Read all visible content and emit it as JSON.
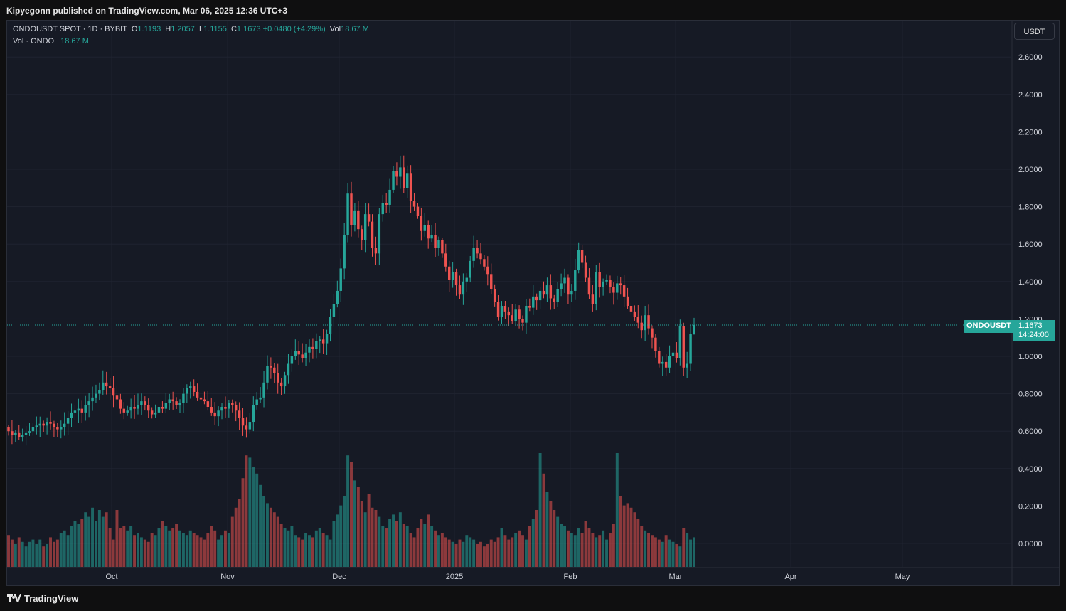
{
  "header": {
    "published_text": "Kipyegonn published on TradingView.com, Mar 06, 2025 12:36 UTC+3"
  },
  "legend": {
    "symbol_line": "ONDOUSDT SPOT · 1D · BYBIT",
    "o_label": "O",
    "o_value": "1.1193",
    "h_label": "H",
    "h_value": "1.2057",
    "l_label": "L",
    "l_value": "1.1155",
    "c_label": "C",
    "c_value": "1.1673",
    "change": "+0.0480 (+4.29%)",
    "vol_label": "Vol",
    "vol_value": "18.67 M",
    "vol_line_label": "Vol · ONDO",
    "vol_line_value": "18.67 M"
  },
  "currency_button": "USDT",
  "price_tag": {
    "symbol": "ONDOUSDT",
    "price": "1.1673",
    "countdown": "14:24:00"
  },
  "footer": {
    "logo_text": "TradingView",
    "logo_icon": "tradingview-logo-icon"
  },
  "colors": {
    "up": "#26a69a",
    "down": "#ef5350",
    "background": "#161a25",
    "grid": "#1f2330"
  },
  "chart_data": {
    "type": "candlestick",
    "title": "ONDOUSDT SPOT · 1D · BYBIT",
    "y_axis": {
      "ticks": [
        "2.6000",
        "2.4000",
        "2.2000",
        "2.0000",
        "1.8000",
        "1.6000",
        "1.4000",
        "1.2000",
        "1.0000",
        "0.8000",
        "0.6000",
        "0.4000",
        "0.2000",
        "0.0000"
      ],
      "ylim": [
        -0.13,
        2.7
      ]
    },
    "x_axis": {
      "ticks": [
        "Oct",
        "Nov",
        "Dec",
        "2025",
        "Feb",
        "Mar",
        "Apr",
        "May"
      ]
    },
    "last_price": 1.1673,
    "grid": true,
    "series": [
      {
        "name": "price",
        "description": "daily close, approximated",
        "start": "2024-09-03",
        "close": [
          0.6,
          0.58,
          0.59,
          0.57,
          0.58,
          0.59,
          0.6,
          0.62,
          0.63,
          0.64,
          0.63,
          0.65,
          0.64,
          0.62,
          0.61,
          0.62,
          0.64,
          0.67,
          0.7,
          0.71,
          0.72,
          0.7,
          0.74,
          0.76,
          0.78,
          0.8,
          0.82,
          0.86,
          0.84,
          0.83,
          0.79,
          0.77,
          0.72,
          0.7,
          0.71,
          0.73,
          0.72,
          0.74,
          0.76,
          0.74,
          0.71,
          0.69,
          0.7,
          0.73,
          0.72,
          0.75,
          0.77,
          0.76,
          0.74,
          0.75,
          0.8,
          0.83,
          0.84,
          0.81,
          0.78,
          0.77,
          0.76,
          0.73,
          0.7,
          0.68,
          0.71,
          0.73,
          0.72,
          0.75,
          0.74,
          0.71,
          0.67,
          0.63,
          0.61,
          0.65,
          0.74,
          0.77,
          0.78,
          0.86,
          0.95,
          0.94,
          0.91,
          0.86,
          0.84,
          0.9,
          0.96,
          1.0,
          1.03,
          1.01,
          0.99,
          1.02,
          1.05,
          1.04,
          1.08,
          1.09,
          1.07,
          1.12,
          1.21,
          1.28,
          1.35,
          1.47,
          1.65,
          1.87,
          1.7,
          1.78,
          1.68,
          1.62,
          1.76,
          1.72,
          1.58,
          1.55,
          1.76,
          1.82,
          1.81,
          1.89,
          1.99,
          1.96,
          2.01,
          1.9,
          1.98,
          1.83,
          1.8,
          1.75,
          1.67,
          1.7,
          1.63,
          1.65,
          1.58,
          1.62,
          1.55,
          1.48,
          1.41,
          1.45,
          1.38,
          1.33,
          1.4,
          1.42,
          1.51,
          1.58,
          1.55,
          1.52,
          1.48,
          1.44,
          1.36,
          1.29,
          1.21,
          1.27,
          1.24,
          1.22,
          1.19,
          1.25,
          1.2,
          1.18,
          1.27,
          1.26,
          1.32,
          1.3,
          1.35,
          1.33,
          1.38,
          1.31,
          1.29,
          1.36,
          1.39,
          1.42,
          1.33,
          1.35,
          1.46,
          1.57,
          1.5,
          1.42,
          1.33,
          1.28,
          1.45,
          1.37,
          1.4,
          1.41,
          1.37,
          1.34,
          1.39,
          1.38,
          1.32,
          1.27,
          1.24,
          1.21,
          1.18,
          1.14,
          1.22,
          1.15,
          1.1,
          1.03,
          0.96,
          0.97,
          0.94,
          1.0,
          1.02,
          0.99,
          1.16,
          0.94,
          0.96,
          1.12,
          1.1673
        ]
      },
      {
        "name": "volume",
        "description": "daily volume, approximated",
        "volume": [
          14,
          12,
          10,
          13,
          11,
          9,
          11,
          12,
          10,
          12,
          9,
          10,
          13,
          11,
          12,
          15,
          16,
          14,
          18,
          20,
          19,
          21,
          24,
          22,
          26,
          20,
          25,
          22,
          24,
          17,
          12,
          25,
          17,
          18,
          16,
          18,
          14,
          15,
          13,
          12,
          11,
          15,
          14,
          17,
          20,
          18,
          16,
          17,
          19,
          16,
          15,
          14,
          16,
          15,
          14,
          13,
          12,
          15,
          18,
          16,
          12,
          14,
          16,
          15,
          22,
          26,
          30,
          39,
          49,
          48,
          44,
          41,
          36,
          31,
          28,
          26,
          24,
          22,
          19,
          17,
          16,
          18,
          14,
          13,
          12,
          15,
          14,
          13,
          16,
          17,
          15,
          14,
          12,
          20,
          23,
          27,
          31,
          49,
          46,
          38,
          35,
          29,
          24,
          32,
          26,
          25,
          22,
          18,
          17,
          21,
          23,
          20,
          24,
          19,
          18,
          15,
          13,
          17,
          21,
          19,
          23,
          18,
          16,
          14,
          15,
          13,
          12,
          11,
          10,
          12,
          11,
          14,
          13,
          12,
          10,
          11,
          9,
          10,
          12,
          11,
          13,
          17,
          14,
          12,
          13,
          15,
          16,
          14,
          12,
          18,
          21,
          25,
          50,
          41,
          33,
          29,
          25,
          22,
          19,
          18,
          16,
          15,
          14,
          17,
          15,
          20,
          17,
          15,
          13,
          14,
          16,
          12,
          15,
          19,
          50,
          31,
          27,
          28,
          26,
          24,
          21,
          18,
          16,
          15,
          14,
          13,
          12,
          11,
          14,
          12,
          11,
          10,
          9,
          17,
          15,
          12,
          13,
          14,
          18,
          16,
          15,
          9
        ]
      }
    ]
  }
}
